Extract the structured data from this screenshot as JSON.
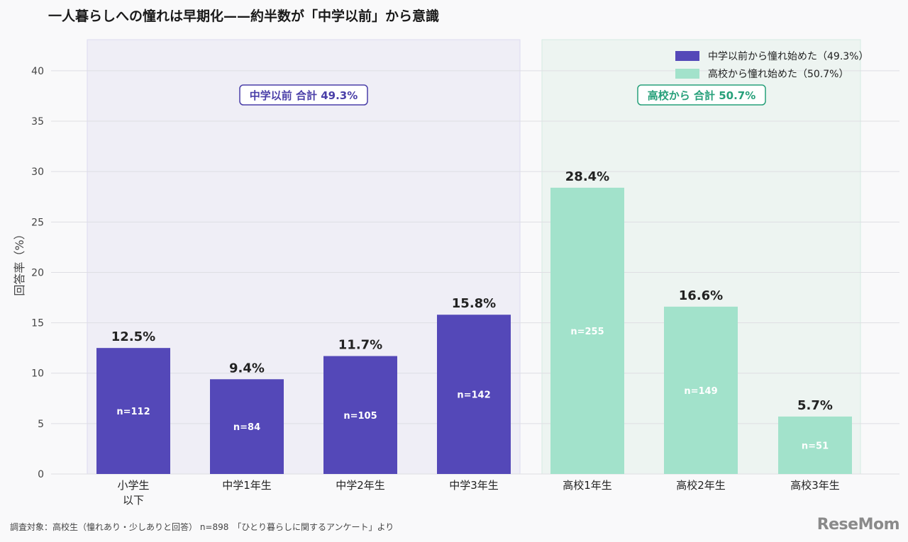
{
  "page": {
    "title": "一人暮らしへの憧れは早期化——約半数が「中学以前」から意識",
    "footer_note": "調査対象：高校生（憧れあり・少しありと回答） n=898　「ひとり暮らしに関するアンケート」より",
    "logo_text": "ReseMom"
  },
  "chart_data": {
    "type": "bar",
    "title": "一人暮らしへの憧れは早期化——約半数が「中学以前」から意識",
    "ylabel": "回答率（%）",
    "xlabel": "",
    "ylim": [
      0,
      44
    ],
    "yticks": [
      0,
      5,
      10,
      15,
      20,
      25,
      30,
      35,
      40
    ],
    "grid": true,
    "legend_position": "top-right",
    "categories": [
      {
        "label": "小学生\n以下",
        "value": 12.5,
        "value_label": "12.5%",
        "n_label": "n=112",
        "group": 0
      },
      {
        "label": "中学1年生",
        "value": 9.4,
        "value_label": "9.4%",
        "n_label": "n=84",
        "group": 0
      },
      {
        "label": "中学2年生",
        "value": 11.7,
        "value_label": "11.7%",
        "n_label": "n=105",
        "group": 0
      },
      {
        "label": "中学3年生",
        "value": 15.8,
        "value_label": "15.8%",
        "n_label": "n=142",
        "group": 0
      },
      {
        "label": "高校1年生",
        "value": 28.4,
        "value_label": "28.4%",
        "n_label": "n=255",
        "group": 1
      },
      {
        "label": "高校2年生",
        "value": 16.6,
        "value_label": "16.6%",
        "n_label": "n=149",
        "group": 1
      },
      {
        "label": "高校3年生",
        "value": 5.7,
        "value_label": "5.7%",
        "n_label": "n=51",
        "group": 1
      }
    ],
    "groups": [
      {
        "legend": "中学以前から憧れ始めた（49.3%）",
        "annotation": "中学以前 合計 49.3%",
        "color": "#5448b8",
        "region_color": "#efeef6",
        "annotation_color": "#4a3fa8"
      },
      {
        "legend": "高校から憧れ始めた（50.7%）",
        "annotation": "高校から 合計 50.7%",
        "color": "#a2e2cb",
        "region_color": "#edf4f1",
        "annotation_color": "#27a07a"
      }
    ]
  }
}
